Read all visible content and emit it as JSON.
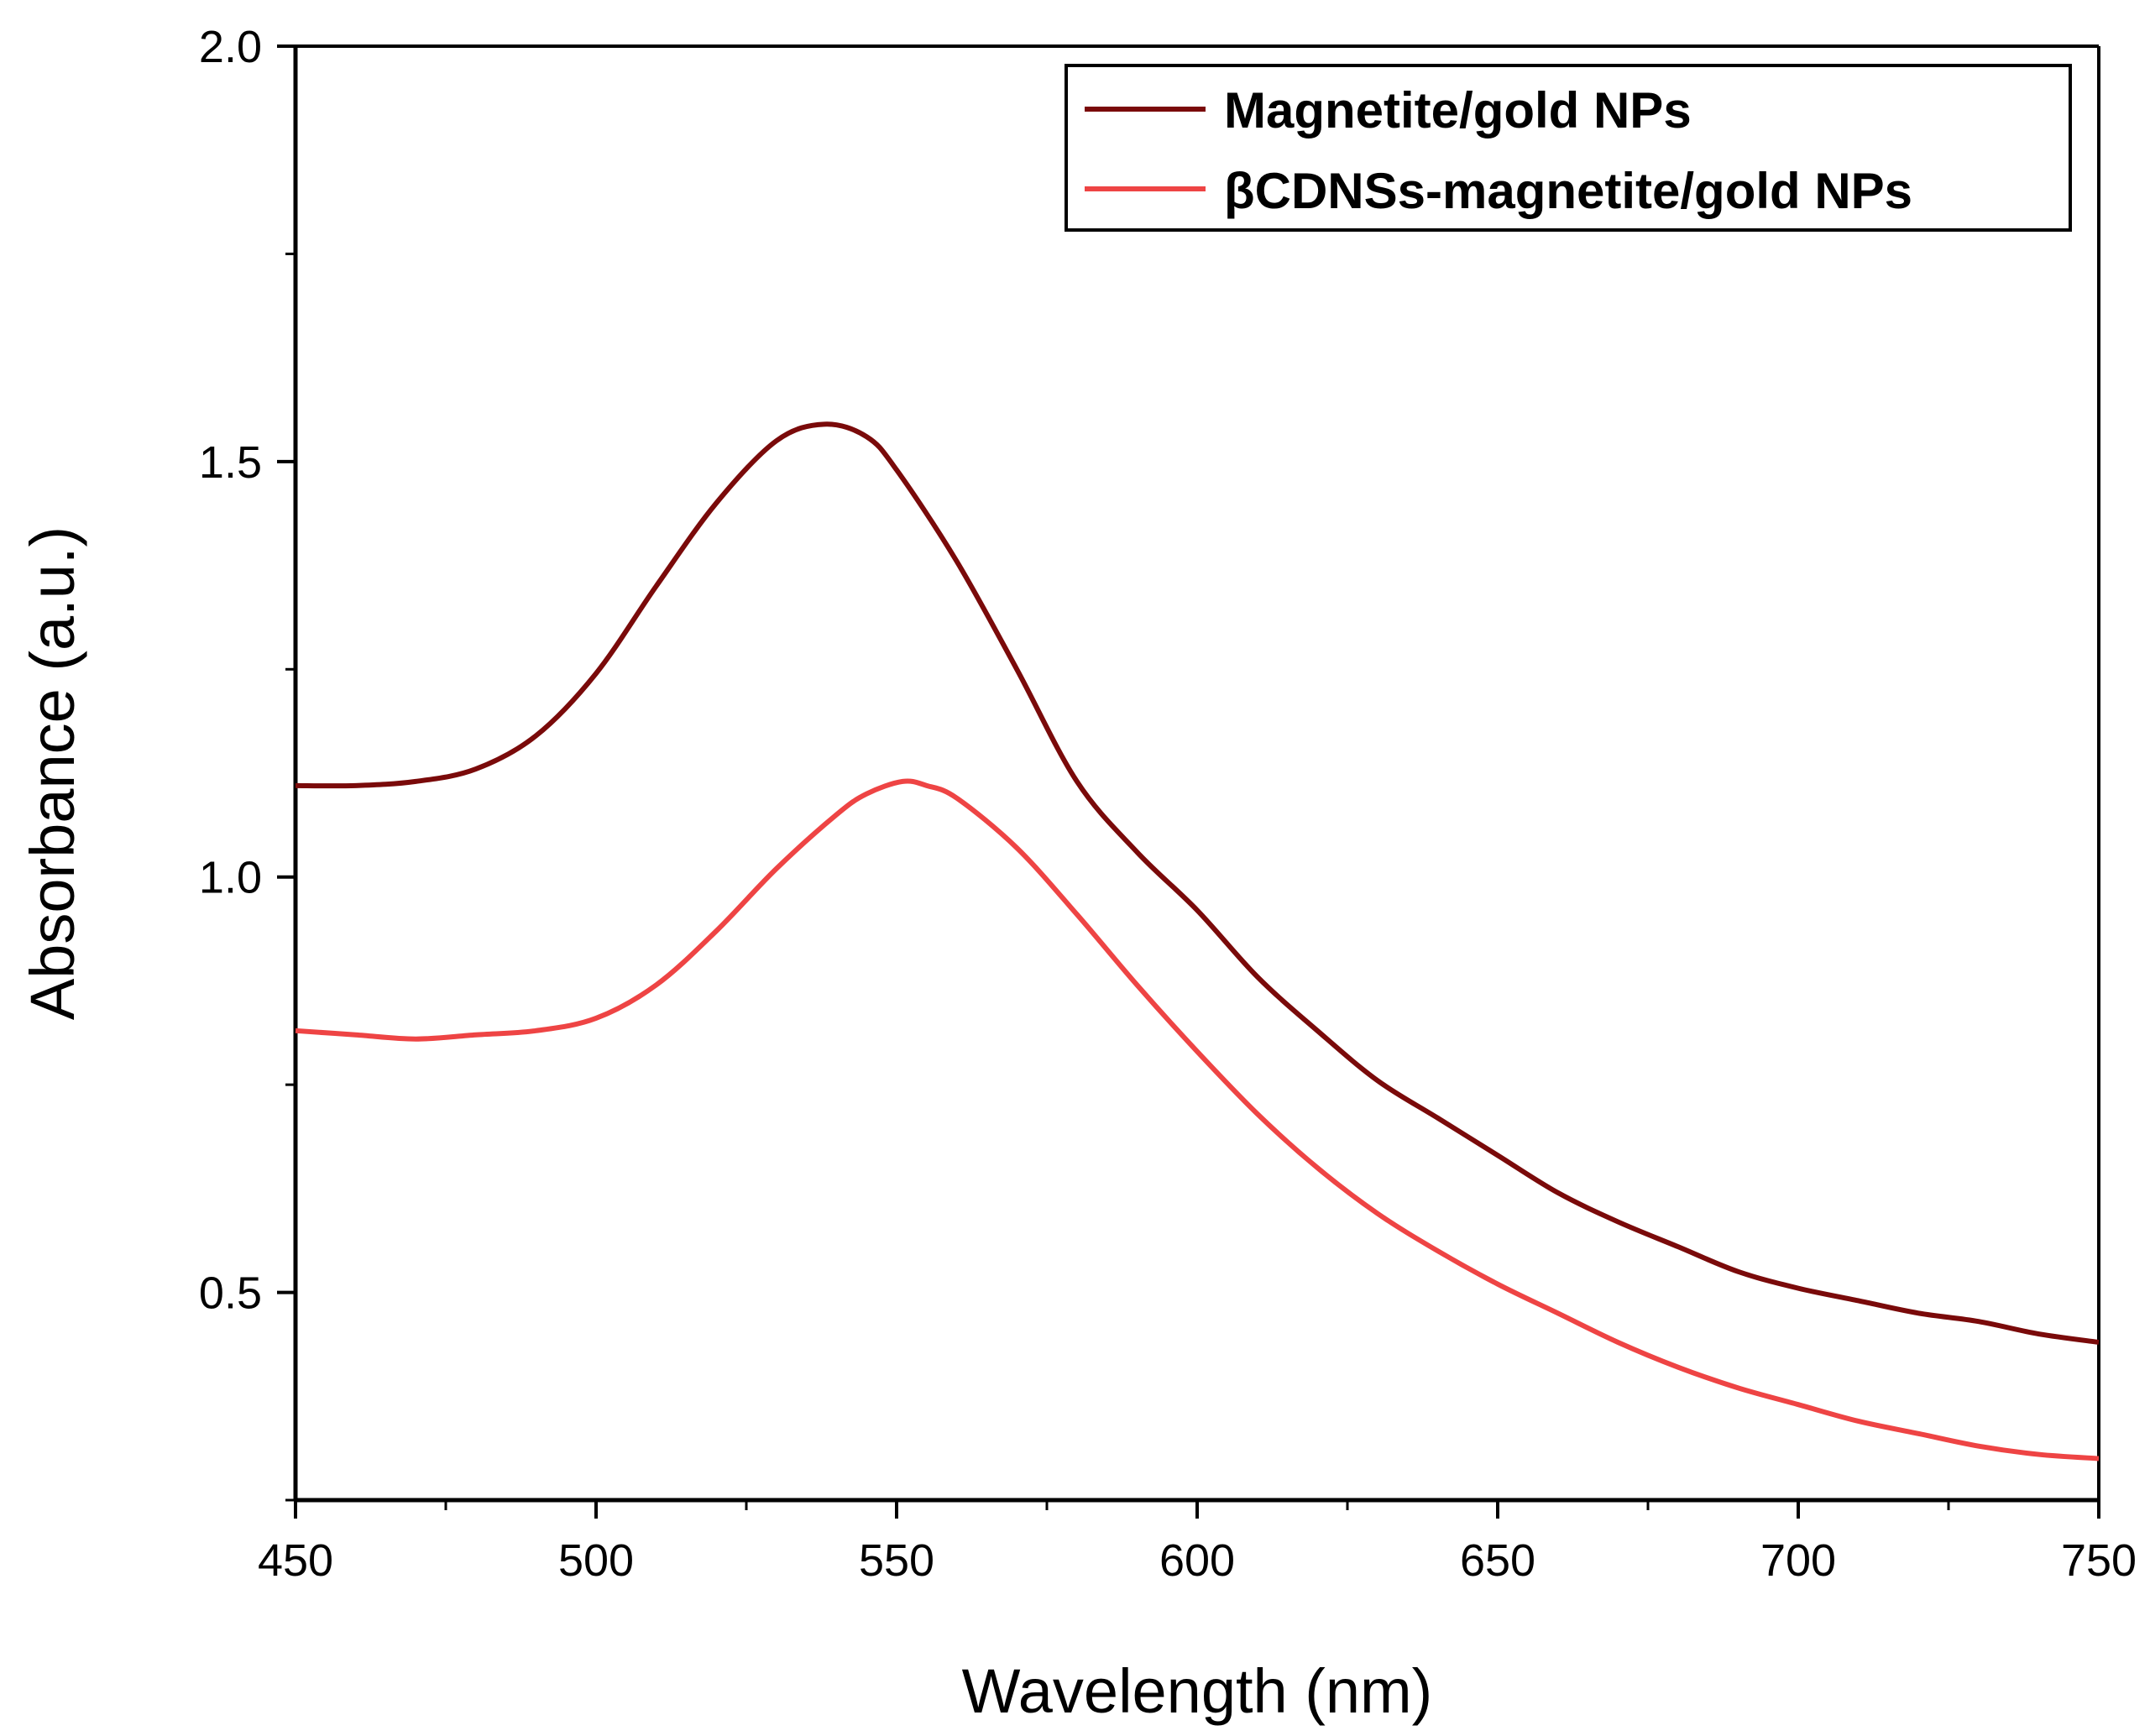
{
  "chart_data": {
    "type": "line",
    "title": "",
    "xlabel": "Wavelength (nm)",
    "ylabel": "Absorbance (a.u.)",
    "xlim": [
      450,
      750
    ],
    "ylim": [
      0.25,
      2.0
    ],
    "xticks": [
      450,
      500,
      550,
      600,
      650,
      700,
      750
    ],
    "xtick_labels": [
      "450",
      "500",
      "550",
      "600",
      "650",
      "700",
      "750"
    ],
    "yticks": [
      0.5,
      1.0,
      1.5,
      2.0
    ],
    "ytick_labels": [
      "0.5",
      "1.0",
      "1.5",
      "2.0"
    ],
    "grid": false,
    "legend_position": "top-right",
    "series": [
      {
        "name": "Magnetite/gold NPs",
        "color": "#7a0a0a",
        "points": [
          [
            450,
            1.11
          ],
          [
            460,
            1.11
          ],
          [
            470,
            1.115
          ],
          [
            480,
            1.13
          ],
          [
            490,
            1.17
          ],
          [
            500,
            1.245
          ],
          [
            510,
            1.35
          ],
          [
            520,
            1.45
          ],
          [
            530,
            1.525
          ],
          [
            538,
            1.545
          ],
          [
            545,
            1.53
          ],
          [
            550,
            1.49
          ],
          [
            560,
            1.38
          ],
          [
            570,
            1.25
          ],
          [
            580,
            1.115
          ],
          [
            590,
            1.03
          ],
          [
            600,
            0.96
          ],
          [
            610,
            0.88
          ],
          [
            620,
            0.815
          ],
          [
            630,
            0.755
          ],
          [
            640,
            0.71
          ],
          [
            650,
            0.665
          ],
          [
            660,
            0.62
          ],
          [
            670,
            0.585
          ],
          [
            680,
            0.555
          ],
          [
            690,
            0.525
          ],
          [
            700,
            0.505
          ],
          [
            710,
            0.49
          ],
          [
            720,
            0.475
          ],
          [
            730,
            0.465
          ],
          [
            740,
            0.45
          ],
          [
            750,
            0.44
          ]
        ]
      },
      {
        "name": "βCDNSs-magnetite/gold NPs",
        "color": "#ee4444",
        "points": [
          [
            450,
            0.815
          ],
          [
            460,
            0.81
          ],
          [
            470,
            0.805
          ],
          [
            480,
            0.81
          ],
          [
            490,
            0.815
          ],
          [
            500,
            0.83
          ],
          [
            510,
            0.87
          ],
          [
            520,
            0.935
          ],
          [
            530,
            1.01
          ],
          [
            540,
            1.075
          ],
          [
            545,
            1.1
          ],
          [
            551,
            1.115
          ],
          [
            555,
            1.11
          ],
          [
            560,
            1.095
          ],
          [
            570,
            1.035
          ],
          [
            580,
            0.955
          ],
          [
            590,
            0.87
          ],
          [
            600,
            0.79
          ],
          [
            610,
            0.715
          ],
          [
            620,
            0.65
          ],
          [
            630,
            0.595
          ],
          [
            640,
            0.55
          ],
          [
            650,
            0.51
          ],
          [
            660,
            0.475
          ],
          [
            670,
            0.44
          ],
          [
            680,
            0.41
          ],
          [
            690,
            0.385
          ],
          [
            700,
            0.365
          ],
          [
            710,
            0.345
          ],
          [
            720,
            0.33
          ],
          [
            730,
            0.315
          ],
          [
            740,
            0.305
          ],
          [
            750,
            0.3
          ]
        ]
      }
    ]
  }
}
